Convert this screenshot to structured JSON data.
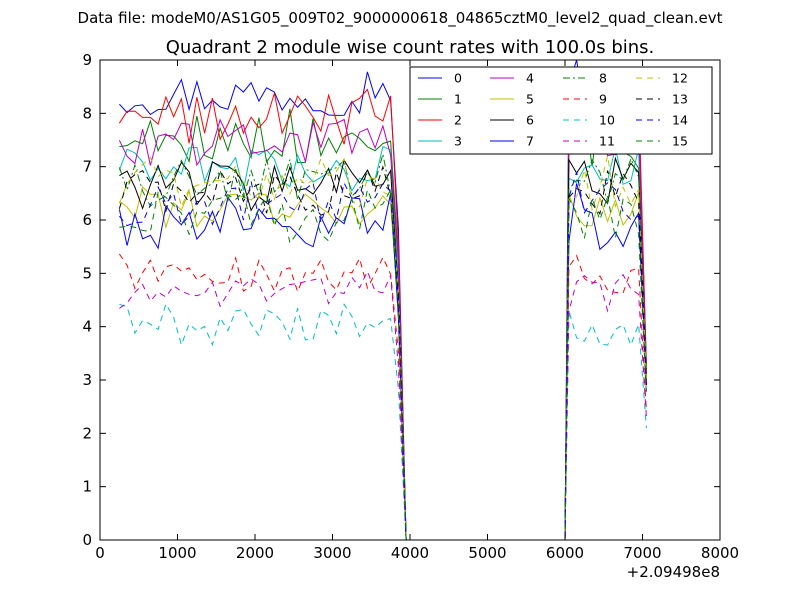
{
  "chart_data": {
    "type": "line",
    "suptitle": "Data file: modeM0/AS1G05_009T02_9000000618_04865cztM0_level2_quad_clean.evt",
    "title": "Quadrant 2 module wise count rates with 100.0s bins.",
    "xlabel": "",
    "ylabel": "",
    "x_offset_label": "+2.09498e8",
    "xlim": [
      0,
      8000
    ],
    "ylim": [
      0,
      9
    ],
    "x_ticks": [
      0,
      1000,
      2000,
      3000,
      4000,
      5000,
      6000,
      7000,
      8000
    ],
    "y_ticks": [
      0,
      1,
      2,
      3,
      4,
      5,
      6,
      7,
      8,
      9
    ],
    "grid": false,
    "legend_position": "top-right",
    "legend_columns": 4,
    "segments": {
      "seg1_x": [
        250,
        350,
        450,
        550,
        650,
        750,
        850,
        950,
        1050,
        1150,
        1250,
        1350,
        1450,
        1550,
        1650,
        1750,
        1850,
        1950,
        2050,
        2150,
        2250,
        2350,
        2450,
        2550,
        2650,
        2750,
        2850,
        2950,
        3050,
        3150,
        3250,
        3350,
        3450,
        3550,
        3650,
        3750
      ],
      "gap_x": [
        3850,
        3950,
        4050,
        6000
      ],
      "seg2_x": [
        6050,
        6150,
        6250,
        6350,
        6450,
        6550,
        6650,
        6750,
        6850,
        6950,
        7050
      ]
    },
    "series": [
      {
        "name": "0",
        "color": "#0000ff",
        "style": "solid",
        "base": 8.35,
        "amp": 0.18,
        "high": 8.65,
        "end": 3.3
      },
      {
        "name": "1",
        "color": "#008000",
        "style": "solid",
        "base": 7.55,
        "amp": 0.25,
        "high": 7.65,
        "end": 3.2
      },
      {
        "name": "2",
        "color": "#ff0000",
        "style": "solid",
        "base": 7.9,
        "amp": 0.22,
        "high": 8.4,
        "end": 3.2
      },
      {
        "name": "3",
        "color": "#00bfbf",
        "style": "solid",
        "base": 6.95,
        "amp": 0.2,
        "high": 7.0,
        "end": 3.0
      },
      {
        "name": "4",
        "color": "#bf00bf",
        "style": "solid",
        "base": 7.45,
        "amp": 0.2,
        "high": 7.6,
        "end": 3.1
      },
      {
        "name": "5",
        "color": "#bfbf00",
        "style": "solid",
        "base": 6.25,
        "amp": 0.2,
        "high": 6.5,
        "end": 2.9
      },
      {
        "name": "6",
        "color": "#000000",
        "style": "solid",
        "base": 6.65,
        "amp": 0.22,
        "high": 6.9,
        "end": 3.0
      },
      {
        "name": "7",
        "color": "#0000ff",
        "style": "solid",
        "base": 5.95,
        "amp": 0.22,
        "high": 6.25,
        "end": 2.9
      },
      {
        "name": "8",
        "color": "#008000",
        "style": "dashdot",
        "base": 6.7,
        "amp": 0.2,
        "high": 6.9,
        "end": 3.0
      },
      {
        "name": "9",
        "color": "#ff0000",
        "style": "dashed",
        "base": 5.05,
        "amp": 0.18,
        "high": 5.1,
        "end": 2.4
      },
      {
        "name": "10",
        "color": "#00bfbf",
        "style": "dashed",
        "base": 4.05,
        "amp": 0.18,
        "high": 4.05,
        "end": 2.1
      },
      {
        "name": "11",
        "color": "#bf00bf",
        "style": "dashed",
        "base": 4.65,
        "amp": 0.15,
        "high": 4.75,
        "end": 2.3
      },
      {
        "name": "12",
        "color": "#bfbf00",
        "style": "dashed",
        "base": 6.7,
        "amp": 0.22,
        "high": 6.9,
        "end": 3.0
      },
      {
        "name": "13",
        "color": "#000000",
        "style": "dashed",
        "base": 6.5,
        "amp": 0.2,
        "high": 6.6,
        "end": 2.9
      },
      {
        "name": "14",
        "color": "#0000ff",
        "style": "dashed",
        "base": 6.3,
        "amp": 0.2,
        "high": 6.5,
        "end": 2.8
      },
      {
        "name": "15",
        "color": "#008000",
        "style": "dashed",
        "base": 6.05,
        "amp": 0.22,
        "high": 6.3,
        "end": 2.7
      }
    ]
  }
}
